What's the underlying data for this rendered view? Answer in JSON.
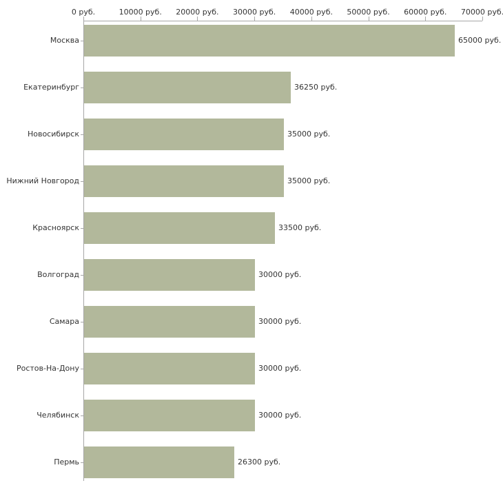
{
  "chart_data": {
    "type": "bar",
    "orientation": "horizontal",
    "categories": [
      "Москва",
      "Екатеринбург",
      "Новосибирск",
      "Нижний Новгород",
      "Красноярск",
      "Волгоград",
      "Самара",
      "Ростов-На-Дону",
      "Челябинск",
      "Пермь"
    ],
    "values": [
      65000,
      36250,
      35000,
      35000,
      33500,
      30000,
      30000,
      30000,
      30000,
      26300
    ],
    "value_labels": [
      "65000 руб.",
      "36250 руб.",
      "35000 руб.",
      "35000 руб.",
      "33500 руб.",
      "30000 руб.",
      "30000 руб.",
      "30000 руб.",
      "30000 руб.",
      "26300 руб."
    ],
    "x_ticks": [
      0,
      10000,
      20000,
      30000,
      40000,
      50000,
      60000,
      70000
    ],
    "x_tick_labels": [
      "0 руб.",
      "10000 руб.",
      "20000 руб.",
      "30000 руб.",
      "40000 руб.",
      "50000 руб.",
      "60000 руб.",
      "70000 руб."
    ],
    "xlim": [
      0,
      70000
    ],
    "bar_color": "#b2b89b",
    "axis_color": "#a6a6a6",
    "text_color": "#333333",
    "background": "#ffffff",
    "grid": false,
    "legend": "none",
    "title": ""
  }
}
